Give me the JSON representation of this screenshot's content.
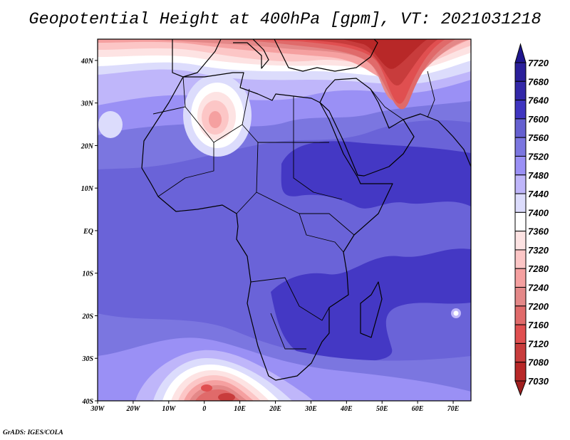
{
  "title": "Geopotential Height at 400hPa [gpm], VT: 2021031218",
  "credit": "GrADS: IGES/COLA",
  "map": {
    "variable": "Geopotential Height",
    "level": "400hPa",
    "units": "gpm",
    "valid_time": "2021031218",
    "lon_range": [
      -30,
      75
    ],
    "lat_range": [
      -40,
      45
    ],
    "x_ticks": [
      {
        "lon": -30,
        "label": "30W"
      },
      {
        "lon": -20,
        "label": "20W"
      },
      {
        "lon": -10,
        "label": "10W"
      },
      {
        "lon": 0,
        "label": "0"
      },
      {
        "lon": 10,
        "label": "10E"
      },
      {
        "lon": 20,
        "label": "20E"
      },
      {
        "lon": 30,
        "label": "30E"
      },
      {
        "lon": 40,
        "label": "40E"
      },
      {
        "lon": 50,
        "label": "50E"
      },
      {
        "lon": 60,
        "label": "60E"
      },
      {
        "lon": 70,
        "label": "70E"
      }
    ],
    "y_ticks": [
      {
        "lat": 40,
        "label": "40N"
      },
      {
        "lat": 30,
        "label": "30N"
      },
      {
        "lat": 20,
        "label": "20N"
      },
      {
        "lat": 10,
        "label": "10N"
      },
      {
        "lat": 0,
        "label": "EQ"
      },
      {
        "lat": -10,
        "label": "10S"
      },
      {
        "lat": -20,
        "label": "20S"
      },
      {
        "lat": -30,
        "label": "30S"
      },
      {
        "lat": -40,
        "label": "40S"
      }
    ]
  },
  "colorbar": {
    "labels": [
      "7720",
      "7680",
      "7640",
      "7600",
      "7560",
      "7520",
      "7480",
      "7440",
      "7400",
      "7360",
      "7320",
      "7280",
      "7240",
      "7200",
      "7160",
      "7120",
      "7080",
      "7030"
    ],
    "top_arrow_color": "#1f168e",
    "bottom_arrow_color": "#a01f1f",
    "colors": [
      "#2a1f9a",
      "#3328a8",
      "#3f35c0",
      "#6560d0",
      "#7b76e0",
      "#9a90f5",
      "#bfb6fa",
      "#dcdcfc",
      "#ffffff",
      "#fde3e3",
      "#fcc6c6",
      "#f5a0a0",
      "#e48888",
      "#e06a6a",
      "#e04f50",
      "#c83c3c",
      "#b82828"
    ]
  }
}
